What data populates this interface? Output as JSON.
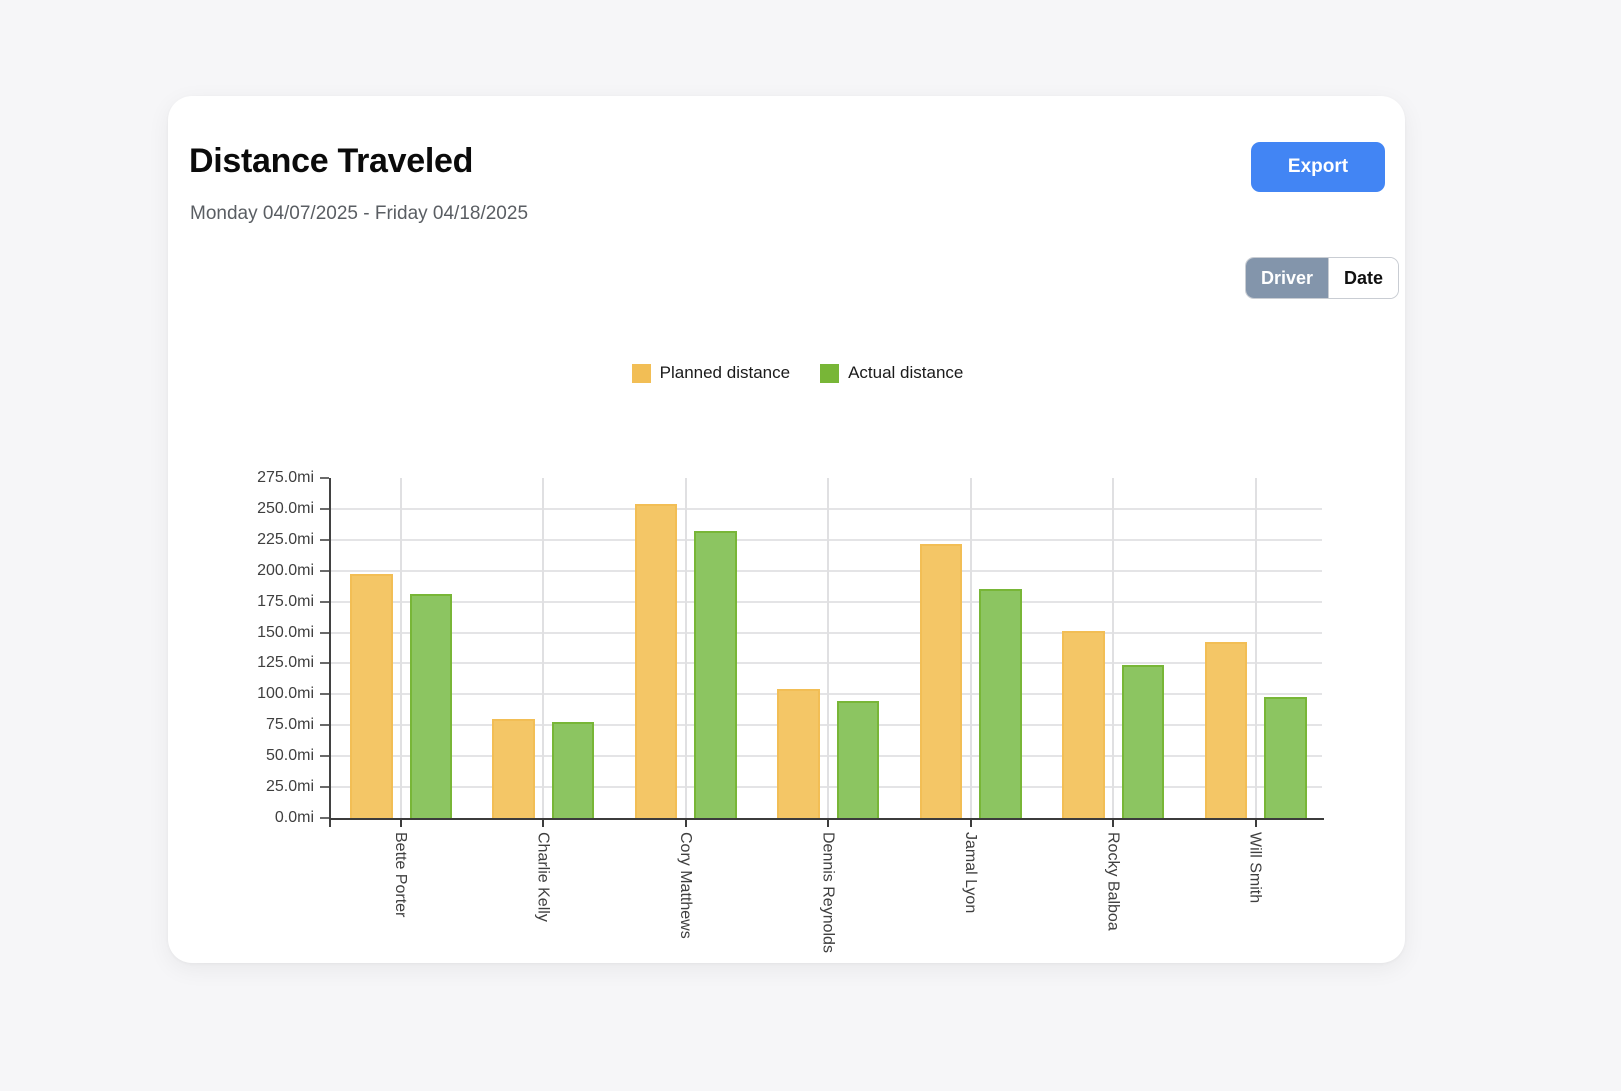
{
  "header": {
    "title": "Distance Traveled",
    "date_range": "Monday 04/07/2025 - Friday 04/18/2025",
    "export_label": "Export"
  },
  "toggle": {
    "options": [
      {
        "label": "Driver",
        "selected": true
      },
      {
        "label": "Date",
        "selected": false
      }
    ]
  },
  "colors": {
    "page_background": "#F6F6F8",
    "card_background": "#FFFFFF",
    "export_button": "#4285F4",
    "toggle_selected": "#8395AB",
    "axis_line": "#3C3C3C",
    "gridline": "#E4E4E6"
  },
  "chart_data": {
    "type": "bar",
    "title": "Distance Traveled",
    "xlabel": "",
    "ylabel": "",
    "y_unit": "mi",
    "ylim": [
      0,
      275
    ],
    "y_tick_step": 25,
    "y_tick_labels": [
      "275.0mi",
      "250.0mi",
      "225.0mi",
      "200.0mi",
      "175.0mi",
      "150.0mi",
      "125.0mi",
      "100.0mi",
      "75.0mi",
      "50.0mi",
      "25.0mi",
      "0.0mi"
    ],
    "grid": true,
    "legend_position": "top",
    "categories": [
      "Bette Porter",
      "Charlie Kelly",
      "Cory Matthews",
      "Dennis Reynolds",
      "Jamal Lyon",
      "Rocky Balboa",
      "Will Smith"
    ],
    "series": [
      {
        "name": "Planned distance",
        "legend_color": "#F2BE55",
        "bar_color": "#F4C666",
        "values": [
          197,
          80,
          254,
          104,
          222,
          151,
          142
        ]
      },
      {
        "name": "Actual distance",
        "legend_color": "#78B637",
        "bar_color": "#8CC561",
        "values": [
          181,
          78,
          232,
          95,
          185,
          124,
          98
        ]
      }
    ]
  }
}
